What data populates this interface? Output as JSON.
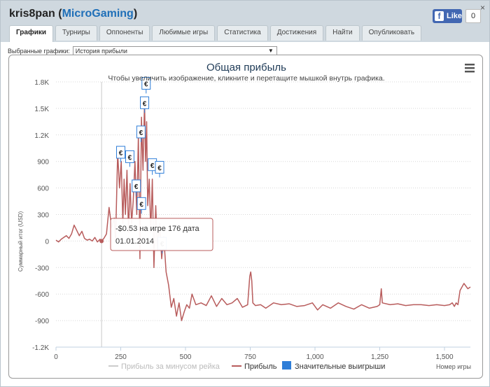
{
  "header": {
    "user": "kris8pan",
    "open_paren": " (",
    "brand": "MicroGaming",
    "close_paren": ")",
    "fb_like_label": "Like",
    "fb_like_count": "0",
    "close_glyph": "×"
  },
  "tabs": [
    {
      "label": "Графики",
      "active": true
    },
    {
      "label": "Турниры",
      "active": false
    },
    {
      "label": "Оппоненты",
      "active": false
    },
    {
      "label": "Любимые игры",
      "active": false
    },
    {
      "label": "Статистика",
      "active": false
    },
    {
      "label": "Достижения",
      "active": false
    },
    {
      "label": "Найти",
      "active": false
    },
    {
      "label": "Опубликовать",
      "active": false
    }
  ],
  "chart_select": {
    "label": "Выбранные графики:",
    "value": "История прибыли",
    "arrow_glyph": "▼"
  },
  "tooltip": {
    "line1": "-$0.53 на игре 176 дата",
    "line2": "01.01.2014"
  },
  "menu_icon": "hamburger-icon",
  "flag_glyph": "€",
  "colors": {
    "profit_line": "#b85c5c",
    "rake_line": "#cccccc",
    "big_wins": "#2f7ed8",
    "grid": "#d8d8d8",
    "title": "#1f3b57"
  },
  "chart_data": {
    "type": "line",
    "title": "Общая прибыль",
    "subtitle": "Чтобы увеличить изображение, кликните и перетащите мышкой внутрь графика.",
    "xlabel": "Номер игры",
    "ylabel": "Суммарный итог (USD)",
    "xlim": [
      0,
      1600
    ],
    "ylim": [
      -1200,
      1800
    ],
    "x_ticks": [
      {
        "v": 0,
        "label": "0"
      },
      {
        "v": 250,
        "label": "250"
      },
      {
        "v": 500,
        "label": "500"
      },
      {
        "v": 750,
        "label": "750"
      },
      {
        "v": 1000,
        "label": "1,000"
      },
      {
        "v": 1250,
        "label": "1,250"
      },
      {
        "v": 1500,
        "label": "1,500"
      }
    ],
    "y_ticks": [
      {
        "v": 1800,
        "label": "1.8K"
      },
      {
        "v": 1500,
        "label": "1.5K"
      },
      {
        "v": 1200,
        "label": "1.2K"
      },
      {
        "v": 900,
        "label": "900"
      },
      {
        "v": 600,
        "label": "600"
      },
      {
        "v": 300,
        "label": "300"
      },
      {
        "v": 0,
        "label": "0"
      },
      {
        "v": -300,
        "label": "-300"
      },
      {
        "v": -600,
        "label": "-600"
      },
      {
        "v": -900,
        "label": "-900"
      },
      {
        "v": -1200,
        "label": "-1.2K"
      }
    ],
    "series": [
      {
        "name": "Прибыль",
        "x": [
          0,
          10,
          20,
          30,
          40,
          50,
          60,
          70,
          80,
          90,
          100,
          110,
          120,
          130,
          140,
          150,
          160,
          170,
          176,
          185,
          195,
          205,
          215,
          225,
          230,
          238,
          245,
          252,
          258,
          263,
          268,
          274,
          280,
          286,
          292,
          298,
          305,
          312,
          318,
          324,
          330,
          336,
          342,
          346,
          350,
          354,
          360,
          366,
          372,
          378,
          385,
          392,
          400,
          408,
          416,
          425,
          435,
          445,
          455,
          465,
          475,
          485,
          495,
          505,
          515,
          525,
          540,
          560,
          580,
          600,
          620,
          640,
          660,
          680,
          700,
          720,
          740,
          748,
          752,
          756,
          760,
          770,
          790,
          810,
          840,
          870,
          900,
          930,
          960,
          990,
          1010,
          1030,
          1060,
          1090,
          1120,
          1150,
          1180,
          1210,
          1240,
          1250,
          1256,
          1260,
          1290,
          1320,
          1350,
          1380,
          1410,
          1440,
          1470,
          1500,
          1520,
          1530,
          1538,
          1545,
          1552,
          1560,
          1575,
          1590,
          1600
        ],
        "y": [
          10,
          -10,
          20,
          40,
          60,
          30,
          80,
          180,
          120,
          60,
          110,
          30,
          10,
          20,
          0,
          40,
          -10,
          20,
          -1,
          30,
          80,
          380,
          150,
          260,
          0,
          1000,
          600,
          900,
          200,
          700,
          300,
          800,
          100,
          650,
          200,
          450,
          900,
          300,
          1200,
          -200,
          1400,
          800,
          1580,
          900,
          1350,
          400,
          700,
          100,
          700,
          -300,
          400,
          -100,
          200,
          -200,
          50,
          -350,
          -500,
          -750,
          -650,
          -850,
          -700,
          -900,
          -800,
          -720,
          -760,
          -600,
          -720,
          -700,
          -730,
          -620,
          -740,
          -650,
          -720,
          -700,
          -650,
          -750,
          -720,
          -400,
          -350,
          -450,
          -700,
          -730,
          -720,
          -760,
          -700,
          -720,
          -710,
          -740,
          -730,
          -700,
          -780,
          -720,
          -760,
          -700,
          -740,
          -770,
          -720,
          -760,
          -740,
          -720,
          -540,
          -700,
          -720,
          -710,
          -730,
          -720,
          -720,
          -730,
          -720,
          -730,
          -720,
          -700,
          -740,
          -700,
          -720,
          -560,
          -480,
          -540,
          -520
        ]
      },
      {
        "name": "Прибыль за минусом рейка",
        "visible": false,
        "x": [],
        "y": []
      },
      {
        "name": "Значительные выигрыши",
        "type": "flags",
        "x": [
          250,
          285,
          310,
          328,
          330,
          342,
          348,
          372,
          400,
          410
        ],
        "y": [
          1000,
          950,
          620,
          1230,
          420,
          1560,
          1780,
          860,
          830,
          -30
        ]
      }
    ],
    "legend_position": "bottom",
    "grid": true,
    "crosshair_x": 176
  }
}
